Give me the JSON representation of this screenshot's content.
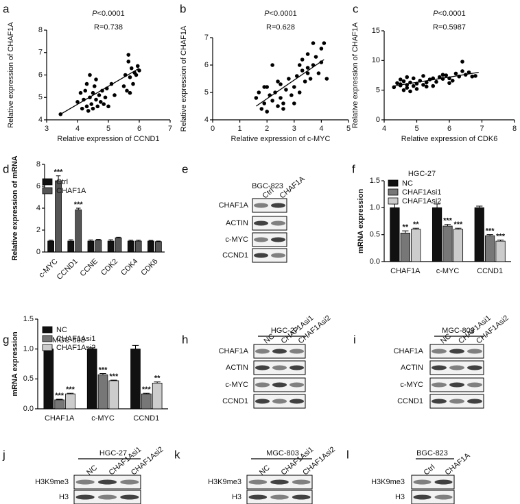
{
  "chart_data": [
    {
      "type": "scatter",
      "panel": "a",
      "p_label": "P",
      "p_value": "<0.0001",
      "r_text": "R=0.738",
      "x_label": "Relative expression of CCND1",
      "y_label": "Relative expression of CHAF1A",
      "xlim": [
        3,
        7
      ],
      "xticks": [
        3,
        4,
        5,
        6,
        7
      ],
      "ylim": [
        4,
        8
      ],
      "yticks": [
        4,
        5,
        6,
        7,
        8
      ],
      "color": "#000000",
      "x": [
        3.45,
        4.0,
        4.1,
        4.15,
        4.2,
        4.25,
        4.3,
        4.3,
        4.35,
        4.4,
        4.4,
        4.45,
        4.5,
        4.5,
        4.55,
        4.6,
        4.6,
        4.65,
        4.7,
        4.75,
        4.8,
        4.85,
        4.9,
        4.95,
        5.0,
        5.1,
        5.2,
        5.5,
        5.55,
        5.6,
        5.65,
        5.7,
        5.75,
        5.8,
        5.85,
        5.9,
        5.95,
        6.0,
        5.65,
        5.7
      ],
      "y": [
        4.25,
        4.8,
        5.2,
        4.5,
        4.9,
        5.3,
        4.6,
        5.6,
        4.4,
        5.0,
        6.0,
        4.7,
        5.2,
        4.5,
        5.5,
        4.9,
        5.8,
        4.6,
        5.1,
        4.8,
        5.3,
        4.7,
        5.0,
        5.4,
        4.6,
        5.6,
        5.1,
        5.5,
        6.0,
        5.3,
        6.6,
        5.9,
        6.3,
        5.6,
        6.1,
        6.0,
        6.4,
        6.2,
        6.9,
        5.2
      ],
      "trend": {
        "x": [
          3.45,
          6.0
        ],
        "y": [
          4.25,
          6.3
        ]
      }
    },
    {
      "type": "scatter",
      "panel": "b",
      "p_label": "P",
      "p_value": "<0.0001",
      "r_text": "R=0.628",
      "x_label": "Relative expression of c-MYC",
      "y_label": "Relative expression of CHAF1A",
      "xlim": [
        0,
        5
      ],
      "xticks": [
        0,
        1,
        2,
        3,
        4,
        5
      ],
      "ylim": [
        4,
        7
      ],
      "yticks": [
        4,
        5,
        6,
        7
      ],
      "color": "#000000",
      "x": [
        1.6,
        1.7,
        1.8,
        1.9,
        2.0,
        2.0,
        2.1,
        2.2,
        2.2,
        2.3,
        2.4,
        2.4,
        2.5,
        2.5,
        2.6,
        2.7,
        2.8,
        2.9,
        3.0,
        3.0,
        3.1,
        3.2,
        3.3,
        3.3,
        3.4,
        3.5,
        3.5,
        3.6,
        3.7,
        3.7,
        3.8,
        3.9,
        4.0,
        4.1,
        4.2,
        2.6,
        1.9,
        3.5,
        4.0,
        3.2
      ],
      "y": [
        4.8,
        5.0,
        4.4,
        4.6,
        5.2,
        4.3,
        4.9,
        6.0,
        4.7,
        5.0,
        4.5,
        5.4,
        4.8,
        5.3,
        4.6,
        5.1,
        5.5,
        4.9,
        5.2,
        4.6,
        5.6,
        5.0,
        6.2,
        5.8,
        5.4,
        6.4,
        5.9,
        5.5,
        6.8,
        6.0,
        6.3,
        5.7,
        6.6,
        6.8,
        5.5,
        4.4,
        5.2,
        5.7,
        6.1,
        6.0
      ],
      "trend": {
        "x": [
          1.6,
          4.1
        ],
        "y": [
          4.5,
          6.2
        ]
      }
    },
    {
      "type": "scatter",
      "panel": "c",
      "p_label": "P",
      "p_value": "<0.0001",
      "r_text": "R=0.5987",
      "x_label": "Relative expression of CDK6",
      "y_label": "Relative expression of CHAF1A",
      "xlim": [
        4,
        8
      ],
      "xticks": [
        4,
        5,
        6,
        7,
        8
      ],
      "ylim": [
        0,
        15
      ],
      "yticks": [
        0,
        5,
        10,
        15
      ],
      "color": "#000000",
      "x": [
        4.3,
        4.4,
        4.5,
        4.5,
        4.6,
        4.6,
        4.7,
        4.7,
        4.8,
        4.8,
        4.9,
        4.9,
        5.0,
        5.0,
        5.1,
        5.2,
        5.2,
        5.3,
        5.4,
        5.5,
        5.5,
        5.6,
        5.7,
        5.8,
        5.9,
        6.0,
        6.1,
        6.2,
        6.3,
        6.4,
        6.5,
        6.6,
        6.7,
        6.8,
        5.3,
        4.5,
        5.8,
        6.0,
        6.4,
        4.7
      ],
      "y": [
        5.5,
        6.2,
        5.8,
        6.8,
        5.0,
        6.5,
        5.9,
        7.2,
        4.8,
        6.3,
        5.7,
        7.0,
        6.1,
        5.2,
        6.6,
        5.9,
        7.4,
        6.3,
        6.8,
        5.7,
        7.0,
        6.4,
        7.2,
        6.9,
        7.5,
        7.0,
        6.6,
        7.8,
        7.3,
        9.8,
        7.6,
        8.0,
        7.3,
        7.4,
        5.6,
        6.0,
        7.6,
        6.2,
        8.2,
        5.4
      ],
      "trend": {
        "x": [
          4.3,
          6.9
        ],
        "y": [
          5.7,
          8.0
        ]
      }
    },
    {
      "type": "bar",
      "panel": "d",
      "y_label": "Relative expression of mRNA",
      "legend": "upper left",
      "categories": [
        "c-MYC",
        "CCND1",
        "CCNE",
        "CDK2",
        "CDK4",
        "CDK6"
      ],
      "ylim": [
        0,
        8
      ],
      "yticks": [
        0,
        2,
        4,
        6,
        8
      ],
      "series": [
        {
          "name": "Ctrl",
          "color": "#111111",
          "values": [
            1.0,
            1.0,
            1.0,
            1.0,
            1.0,
            1.0
          ],
          "errors": [
            0.08,
            0.12,
            0.1,
            0.12,
            0.08,
            0.06
          ],
          "annotations": [
            null,
            null,
            null,
            null,
            null,
            null
          ]
        },
        {
          "name": "CHAF1A",
          "color": "#555555",
          "values": [
            6.5,
            3.85,
            1.1,
            1.3,
            1.0,
            0.95
          ],
          "errors": [
            0.45,
            0.15,
            0.05,
            0.05,
            0.08,
            0.05
          ],
          "annotations": [
            "***",
            "***",
            null,
            null,
            null,
            null
          ]
        }
      ]
    },
    {
      "type": "bar",
      "panel": "f",
      "title": "HGC-27",
      "y_label": "mRNA expression",
      "legend": "upper left",
      "categories": [
        "CHAF1A",
        "c-MYC",
        "CCND1"
      ],
      "ylim": [
        0,
        1.5
      ],
      "yticks": [
        {
          "value": 0,
          "label": "0.0"
        },
        0.5,
        {
          "value": 1,
          "label": "1.0"
        },
        1.5
      ],
      "series": [
        {
          "name": "NC",
          "color": "#111111",
          "values": [
            1.0,
            1.0,
            1.0
          ],
          "errors": [
            0.07,
            0.07,
            0.03
          ],
          "annotations": [
            null,
            null,
            null
          ]
        },
        {
          "name": "CHAF1Asi1",
          "color": "#777777",
          "values": [
            0.53,
            0.66,
            0.48
          ],
          "errors": [
            0.04,
            0.03,
            0.02
          ],
          "annotations": [
            "**",
            "***",
            "***"
          ]
        },
        {
          "name": "CHAF1Asi2",
          "color": "#cccccc",
          "values": [
            0.6,
            0.6,
            0.38
          ],
          "errors": [
            0.02,
            0.02,
            0.02
          ],
          "annotations": [
            "**",
            "***",
            "***"
          ]
        }
      ]
    },
    {
      "type": "bar",
      "panel": "g",
      "title": "MGC-803",
      "y_label": "mRNA expression",
      "legend": "upper left",
      "categories": [
        "CHAF1A",
        "c-MYC",
        "CCND1"
      ],
      "ylim": [
        0,
        1.5
      ],
      "yticks": [
        {
          "value": 0,
          "label": "0.0"
        },
        0.5,
        {
          "value": 1,
          "label": "1.0"
        },
        1.5
      ],
      "series": [
        {
          "name": "NC",
          "color": "#111111",
          "values": [
            1.0,
            1.0,
            1.0
          ],
          "errors": [
            0.02,
            0.02,
            0.06
          ],
          "annotations": [
            null,
            null,
            null
          ]
        },
        {
          "name": "CHAF1Asi1",
          "color": "#777777",
          "values": [
            0.15,
            0.57,
            0.25
          ],
          "errors": [
            0.01,
            0.02,
            0.01
          ],
          "annotations": [
            "***",
            "***",
            "***"
          ]
        },
        {
          "name": "CHAF1Asi2",
          "color": "#cccccc",
          "values": [
            0.25,
            0.47,
            0.43
          ],
          "errors": [
            0.01,
            0.01,
            0.02
          ],
          "annotations": [
            "***",
            "***",
            "**"
          ]
        }
      ]
    }
  ],
  "blots": [
    {
      "panel": "e",
      "title": "BGC-823",
      "lanes": [
        "Ctrl",
        "CHAF1A"
      ],
      "rows": [
        "CHAF1A",
        "ACTIN",
        "c-MYC",
        "CCND1"
      ]
    },
    {
      "panel": "h",
      "title": "HGC-27",
      "lanes": [
        "NC",
        "CHAF1Asi1",
        "CHAF1Asi2"
      ],
      "rows": [
        "CHAF1A",
        "ACTIN",
        "c-MYC",
        "CCND1"
      ]
    },
    {
      "panel": "i",
      "title": "MGC-803",
      "lanes": [
        "NC",
        "CHAF1Asi1",
        "CHAF1Asi2"
      ],
      "rows": [
        "CHAF1A",
        "ACTIN",
        "c-MYC",
        "CCND1"
      ]
    },
    {
      "panel": "j",
      "title": "HGC-27",
      "lanes": [
        "NC",
        "CHAF1Asi1",
        "CHAF1Asi2"
      ],
      "rows": [
        "H3K9me3",
        "H3"
      ]
    },
    {
      "panel": "k",
      "title": "MGC-803",
      "lanes": [
        "NC",
        "CHAF1Asi1",
        "CHAF1Asi2"
      ],
      "rows": [
        "H3K9me3",
        "H3"
      ]
    },
    {
      "panel": "l",
      "title": "BGC-823",
      "lanes": [
        "Ctrl",
        "CHAF1A"
      ],
      "rows": [
        "H3K9me3",
        "H3"
      ]
    }
  ]
}
